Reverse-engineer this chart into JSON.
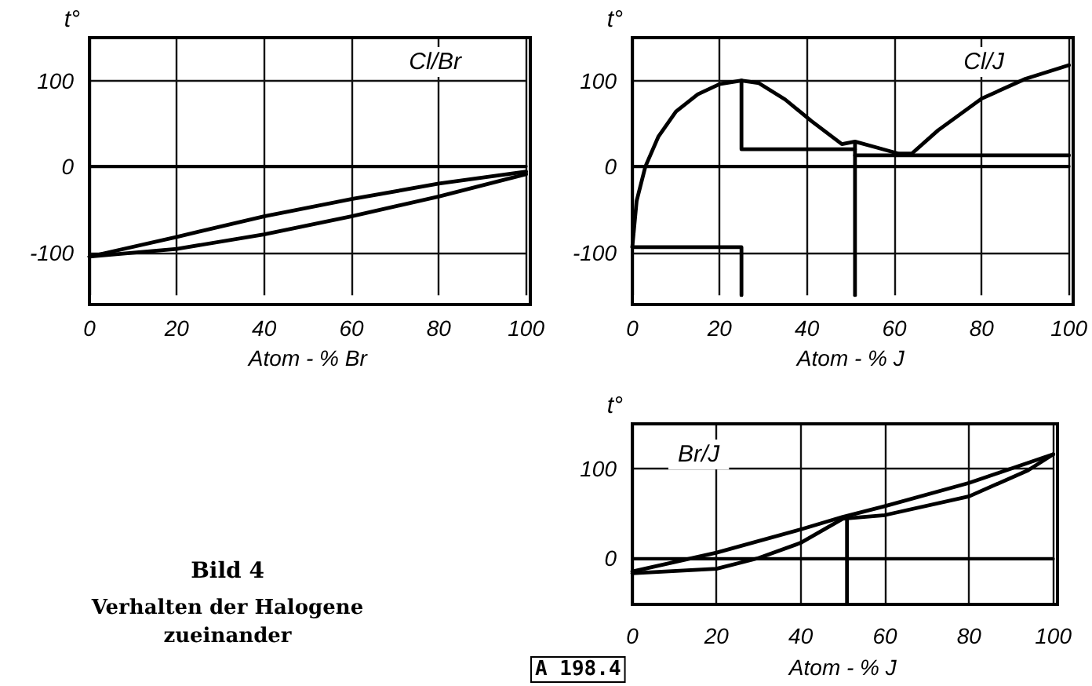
{
  "chart_data": [
    {
      "type": "line",
      "title": "Cl/Br",
      "xlabel": "Atom - % Br",
      "ylabel": "t°",
      "xlim": [
        0,
        100
      ],
      "xticks": [
        0,
        20,
        40,
        60,
        80,
        100
      ],
      "ylim": [
        -150,
        150
      ],
      "yticks": [
        -100,
        0,
        100
      ],
      "grid": true,
      "marker": "none",
      "line_style": "solid",
      "series": [
        {
          "color": "#000000",
          "x": [
            0,
            20,
            40,
            60,
            80,
            100
          ],
          "values": [
            -105,
            -82,
            -58,
            -38,
            -20,
            -6
          ]
        },
        {
          "color": "#000000",
          "x": [
            0,
            20,
            40,
            60,
            80,
            100
          ],
          "values": [
            -105,
            -96,
            -79,
            -58,
            -35,
            -9
          ]
        }
      ]
    },
    {
      "type": "line",
      "title": "Cl/J",
      "xlabel": "Atom - % J",
      "ylabel": "t°",
      "xlim": [
        0,
        100
      ],
      "xticks": [
        0,
        20,
        40,
        60,
        80,
        100
      ],
      "ylim": [
        -150,
        150
      ],
      "yticks": [
        -100,
        0,
        100
      ],
      "grid": true,
      "marker": "none",
      "line_style": "solid",
      "series": [
        {
          "color": "#000000",
          "x": [
            0,
            1,
            3,
            6,
            10,
            15,
            20,
            25,
            29,
            35,
            41,
            48,
            51,
            56,
            61,
            64,
            70,
            80,
            90,
            100
          ],
          "values": [
            -94,
            -40,
            0,
            35,
            64,
            84,
            96,
            100,
            97,
            78,
            53,
            26,
            29,
            22,
            15,
            15,
            42,
            79,
            102,
            118
          ]
        },
        {
          "color": "#000000",
          "x": [
            0,
            25,
            25
          ],
          "values": [
            -94,
            -94,
            -150
          ]
        },
        {
          "color": "#000000",
          "x": [
            25,
            25,
            51
          ],
          "values": [
            100,
            20,
            20
          ]
        },
        {
          "color": "#000000",
          "x": [
            51,
            51
          ],
          "values": [
            28,
            -150
          ]
        },
        {
          "color": "#000000",
          "x": [
            51,
            100
          ],
          "values": [
            13,
            13
          ]
        }
      ]
    },
    {
      "type": "line",
      "title": "Br/J",
      "xlabel": "Atom - % J",
      "ylabel": "t°",
      "xlim": [
        0,
        100
      ],
      "xticks": [
        0,
        20,
        40,
        60,
        80,
        100
      ],
      "ylim": [
        -50,
        150
      ],
      "yticks": [
        0,
        100
      ],
      "grid": true,
      "marker": "none",
      "line_style": "solid",
      "annotations": [
        "A 198.4"
      ],
      "series": [
        {
          "color": "#000000",
          "x": [
            0,
            20,
            40,
            50,
            60,
            80,
            100
          ],
          "values": [
            -15,
            6,
            32,
            46,
            58,
            84,
            116
          ]
        },
        {
          "color": "#000000",
          "x": [
            0,
            20,
            30,
            40,
            50,
            60,
            80,
            94,
            100
          ],
          "values": [
            -17,
            -12,
            0,
            17,
            44,
            48,
            69,
            98,
            116
          ]
        },
        {
          "color": "#000000",
          "x": [
            51,
            51
          ],
          "values": [
            45,
            -50
          ]
        }
      ]
    },
    {
      "type": "other",
      "title": "Bild 4",
      "annotations": [
        "Verhalten der Halogene zueinander"
      ]
    }
  ]
}
